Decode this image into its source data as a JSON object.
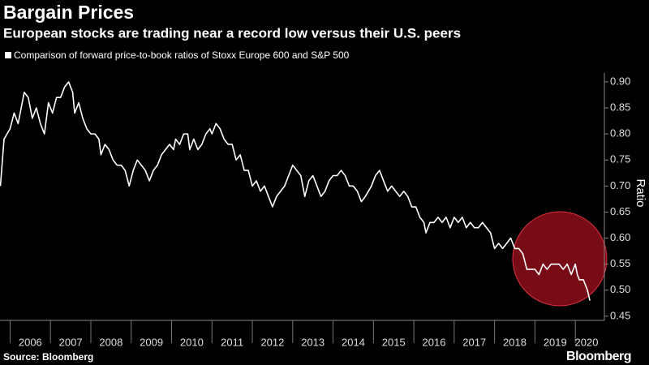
{
  "chart_data": {
    "type": "line",
    "title": "Bargain Prices",
    "subtitle": "European stocks are trading near a record low versus their U.S. peers",
    "y_label": "Ratio",
    "source": "Source: Bloomberg",
    "logo": "Bloomberg",
    "x": [
      2005.76,
      2005.85,
      2006.0,
      2006.1,
      2006.2,
      2006.35,
      2006.45,
      2006.55,
      2006.65,
      2006.75,
      2006.85,
      2006.95,
      2007.05,
      2007.15,
      2007.25,
      2007.35,
      2007.45,
      2007.55,
      2007.6,
      2007.7,
      2007.8,
      2007.9,
      2008.0,
      2008.1,
      2008.2,
      2008.25,
      2008.35,
      2008.45,
      2008.55,
      2008.65,
      2008.75,
      2008.85,
      2008.95,
      2009.05,
      2009.15,
      2009.25,
      2009.35,
      2009.45,
      2009.55,
      2009.65,
      2009.75,
      2009.85,
      2009.95,
      2010.05,
      2010.1,
      2010.2,
      2010.3,
      2010.4,
      2010.45,
      2010.55,
      2010.65,
      2010.75,
      2010.85,
      2010.95,
      2011.0,
      2011.1,
      2011.2,
      2011.3,
      2011.4,
      2011.5,
      2011.6,
      2011.7,
      2011.8,
      2011.9,
      2012.0,
      2012.1,
      2012.2,
      2012.3,
      2012.4,
      2012.5,
      2012.6,
      2012.7,
      2012.8,
      2012.9,
      2013.0,
      2013.1,
      2013.2,
      2013.3,
      2013.4,
      2013.5,
      2013.6,
      2013.7,
      2013.8,
      2013.9,
      2014.0,
      2014.1,
      2014.2,
      2014.3,
      2014.4,
      2014.5,
      2014.6,
      2014.7,
      2014.8,
      2014.95,
      2015.05,
      2015.15,
      2015.25,
      2015.35,
      2015.45,
      2015.55,
      2015.65,
      2015.75,
      2015.85,
      2015.95,
      2016.05,
      2016.15,
      2016.25,
      2016.3,
      2016.4,
      2016.5,
      2016.6,
      2016.7,
      2016.8,
      2016.9,
      2017.0,
      2017.1,
      2017.2,
      2017.3,
      2017.4,
      2017.5,
      2017.6,
      2017.7,
      2017.8,
      2017.9,
      2018.0,
      2018.1,
      2018.2,
      2018.3,
      2018.4,
      2018.5,
      2018.6,
      2018.7,
      2018.8,
      2018.9,
      2019.0,
      2019.1,
      2019.2,
      2019.3,
      2019.4,
      2019.5,
      2019.6,
      2019.7,
      2019.8,
      2019.9,
      2020.0,
      2020.05,
      2020.1,
      2020.2,
      2020.3,
      2020.36
    ],
    "series": [
      {
        "name": "Comparison of forward price-to-book ratios of Stoxx Europe 600 and S&P 500",
        "color": "#ffffff",
        "values": [
          0.7,
          0.79,
          0.81,
          0.84,
          0.82,
          0.88,
          0.87,
          0.83,
          0.85,
          0.82,
          0.8,
          0.86,
          0.84,
          0.87,
          0.87,
          0.89,
          0.9,
          0.88,
          0.84,
          0.86,
          0.83,
          0.81,
          0.8,
          0.8,
          0.79,
          0.76,
          0.78,
          0.77,
          0.75,
          0.74,
          0.74,
          0.73,
          0.7,
          0.73,
          0.75,
          0.74,
          0.73,
          0.71,
          0.73,
          0.74,
          0.76,
          0.77,
          0.78,
          0.77,
          0.79,
          0.78,
          0.8,
          0.8,
          0.77,
          0.79,
          0.77,
          0.78,
          0.8,
          0.81,
          0.8,
          0.82,
          0.81,
          0.79,
          0.78,
          0.78,
          0.75,
          0.76,
          0.73,
          0.73,
          0.7,
          0.71,
          0.69,
          0.7,
          0.68,
          0.66,
          0.68,
          0.69,
          0.7,
          0.72,
          0.74,
          0.73,
          0.72,
          0.68,
          0.71,
          0.72,
          0.7,
          0.68,
          0.69,
          0.71,
          0.72,
          0.72,
          0.73,
          0.72,
          0.7,
          0.7,
          0.69,
          0.67,
          0.68,
          0.7,
          0.72,
          0.73,
          0.71,
          0.69,
          0.7,
          0.69,
          0.68,
          0.69,
          0.68,
          0.66,
          0.66,
          0.64,
          0.63,
          0.61,
          0.63,
          0.63,
          0.64,
          0.63,
          0.64,
          0.62,
          0.64,
          0.63,
          0.64,
          0.62,
          0.63,
          0.62,
          0.62,
          0.63,
          0.62,
          0.61,
          0.58,
          0.59,
          0.58,
          0.59,
          0.6,
          0.58,
          0.58,
          0.57,
          0.54,
          0.54,
          0.54,
          0.53,
          0.55,
          0.54,
          0.55,
          0.55,
          0.55,
          0.54,
          0.55,
          0.53,
          0.55,
          0.53,
          0.52,
          0.52,
          0.5,
          0.48
        ]
      }
    ],
    "xlim": [
      2005.75,
      2020.72
    ],
    "xticks": [
      2006,
      2007,
      2008,
      2009,
      2010,
      2011,
      2012,
      2013,
      2014,
      2015,
      2016,
      2017,
      2018,
      2019,
      2020
    ],
    "ylim": [
      0.442,
      0.917
    ],
    "yticks": [
      0.45,
      {
        "value": 0.5,
        "label": "0.50"
      },
      0.55,
      {
        "value": 0.6,
        "label": "0.60"
      },
      0.65,
      {
        "value": 0.7,
        "label": "0.70"
      },
      0.75,
      {
        "value": 0.8,
        "label": "0.80"
      },
      0.85,
      {
        "value": 0.9,
        "label": "0.90"
      }
    ],
    "y_axis_side": "right",
    "grid": false
  }
}
